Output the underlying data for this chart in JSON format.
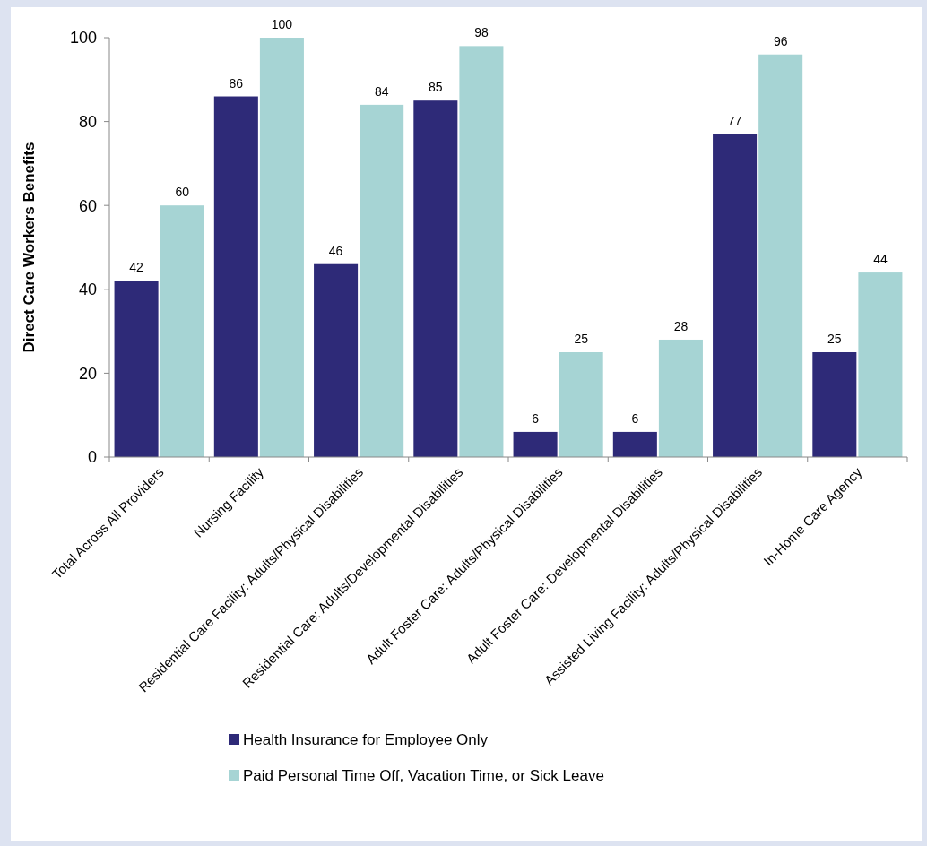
{
  "chart_data": {
    "type": "bar",
    "ylabel": "Direct Care Workers Benefits",
    "categories": [
      "Total Across All Providers",
      "Nursing Facility",
      "Residential Care Facility: Adults/Physical Disabilities",
      "Residential Care: Adults/Developmental Disabilities",
      "Adult Foster Care: Adults/Physical Disabilities",
      "Adult Foster Care: Developmental Disabilities",
      "Assisted Living Facility: Adults/Physical Disabilities",
      "In-Home Care Agency"
    ],
    "series": [
      {
        "name": "Health Insurance for Employee Only",
        "color": "#2e2a78",
        "values": [
          42,
          86,
          46,
          85,
          6,
          6,
          77,
          25
        ]
      },
      {
        "name": "Paid Personal Time Off, Vacation Time, or Sick Leave",
        "color": "#a6d4d4",
        "values": [
          60,
          100,
          84,
          98,
          25,
          28,
          96,
          44
        ]
      }
    ],
    "ylim": [
      0,
      100
    ],
    "yticks": [
      0,
      20,
      40,
      60,
      80,
      100
    ],
    "data_labels": true,
    "legend": "bottom",
    "grid": false
  }
}
